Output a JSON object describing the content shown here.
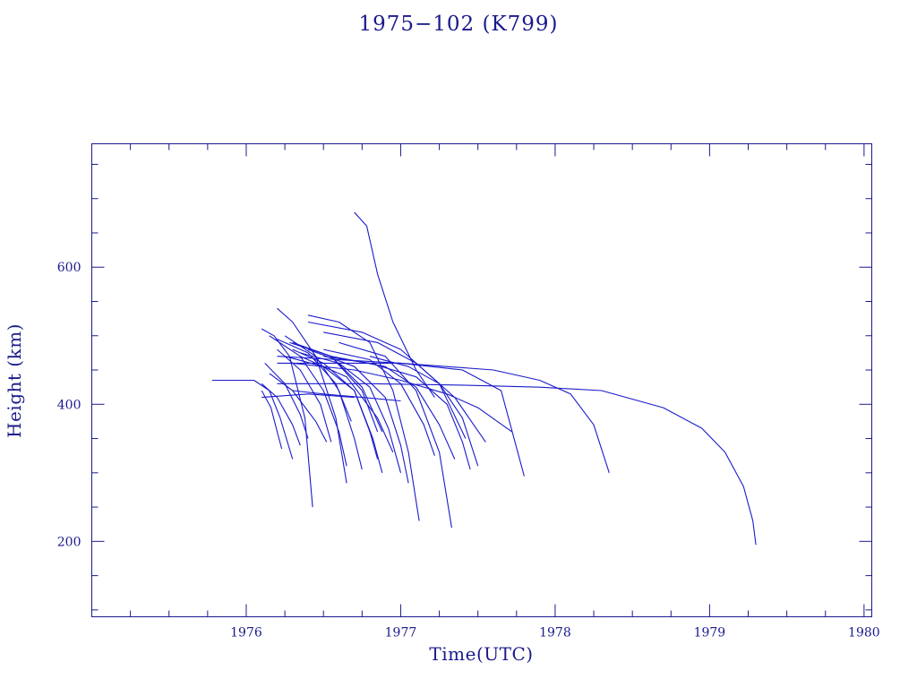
{
  "chart_data": {
    "type": "line",
    "title": "1975−102 (K799)",
    "xlabel": "Time(UTC)",
    "ylabel": "Height (km)",
    "xlim": [
      1975.0,
      1980.05
    ],
    "ylim": [
      90,
      780
    ],
    "x_ticks": [
      1976,
      1977,
      1978,
      1979,
      1980
    ],
    "x_tick_labels": [
      "1976",
      "1977",
      "1978",
      "1979",
      "1980"
    ],
    "y_ticks": [
      200,
      400,
      600
    ],
    "y_tick_labels": [
      "200",
      "400",
      "600"
    ],
    "grid": false,
    "color": "#1a1acc",
    "axis_color": "#1a1a8c",
    "series": [
      {
        "x": [
          1975.78,
          1976.05,
          1976.15,
          1976.22,
          1976.3
        ],
        "y": [
          435,
          435,
          420,
          380,
          320
        ]
      },
      {
        "x": [
          1976.1,
          1976.18,
          1976.28,
          1976.38,
          1976.43
        ],
        "y": [
          510,
          500,
          470,
          380,
          250
        ]
      },
      {
        "x": [
          1976.2,
          1976.3,
          1976.45,
          1976.58,
          1976.65
        ],
        "y": [
          540,
          520,
          470,
          380,
          285
        ]
      },
      {
        "x": [
          1976.7,
          1976.78,
          1976.85,
          1976.95,
          1977.1,
          1977.22
        ],
        "y": [
          680,
          660,
          590,
          520,
          450,
          410
        ]
      },
      {
        "x": [
          1976.4,
          1976.6,
          1976.8,
          1976.95,
          1977.05,
          1977.12
        ],
        "y": [
          530,
          520,
          490,
          420,
          330,
          230
        ]
      },
      {
        "x": [
          1976.6,
          1976.9,
          1977.1,
          1977.25,
          1977.33
        ],
        "y": [
          490,
          470,
          420,
          330,
          220
        ]
      },
      {
        "x": [
          1976.2,
          1976.6,
          1977.0,
          1977.4,
          1977.65,
          1977.8
        ],
        "y": [
          470,
          465,
          460,
          450,
          420,
          295
        ]
      },
      {
        "x": [
          1976.2,
          1977.0,
          1977.6,
          1977.9,
          1978.1,
          1978.25,
          1978.35
        ],
        "y": [
          460,
          460,
          450,
          435,
          415,
          370,
          300
        ]
      },
      {
        "x": [
          1976.2,
          1976.8,
          1977.4,
          1977.9,
          1978.3,
          1978.7,
          1978.95,
          1979.1,
          1979.22,
          1979.28,
          1979.3
        ],
        "y": [
          430,
          430,
          428,
          425,
          420,
          395,
          365,
          330,
          280,
          230,
          195
        ]
      },
      {
        "x": [
          1976.3,
          1976.7,
          1977.0,
          1977.3,
          1977.5,
          1977.72
        ],
        "y": [
          460,
          450,
          435,
          415,
          395,
          360
        ]
      },
      {
        "x": [
          1976.5,
          1976.8,
          1977.1,
          1977.3,
          1977.4,
          1977.45
        ],
        "y": [
          470,
          460,
          440,
          400,
          345,
          305
        ]
      },
      {
        "x": [
          1976.4,
          1976.7,
          1976.9,
          1977.0,
          1977.05
        ],
        "y": [
          480,
          455,
          410,
          340,
          285
        ]
      },
      {
        "x": [
          1976.3,
          1976.5,
          1976.7,
          1976.82,
          1976.88
        ],
        "y": [
          480,
          460,
          420,
          350,
          300
        ]
      },
      {
        "x": [
          1976.25,
          1976.45,
          1976.6,
          1976.7,
          1976.75
        ],
        "y": [
          500,
          470,
          420,
          350,
          305
        ]
      },
      {
        "x": [
          1976.15,
          1976.35,
          1976.5,
          1976.6,
          1976.65
        ],
        "y": [
          500,
          470,
          420,
          360,
          310
        ]
      },
      {
        "x": [
          1976.2,
          1976.35,
          1976.48,
          1976.55
        ],
        "y": [
          480,
          450,
          400,
          345
        ]
      },
      {
        "x": [
          1976.12,
          1976.25,
          1976.35,
          1976.4
        ],
        "y": [
          460,
          430,
          385,
          350
        ]
      },
      {
        "x": [
          1976.25,
          1976.5,
          1976.7,
          1976.8,
          1976.85
        ],
        "y": [
          470,
          455,
          420,
          360,
          320
        ]
      },
      {
        "x": [
          1976.35,
          1976.6,
          1976.8,
          1976.92,
          1977.0
        ],
        "y": [
          475,
          460,
          425,
          365,
          300
        ]
      },
      {
        "x": [
          1976.5,
          1976.8,
          1977.0,
          1977.15,
          1977.22
        ],
        "y": [
          480,
          465,
          430,
          370,
          325
        ]
      },
      {
        "x": [
          1976.55,
          1976.9,
          1977.1,
          1977.25,
          1977.35
        ],
        "y": [
          470,
          455,
          425,
          370,
          320
        ]
      },
      {
        "x": [
          1976.3,
          1976.55,
          1976.75,
          1976.85
        ],
        "y": [
          490,
          470,
          420,
          360
        ]
      },
      {
        "x": [
          1976.35,
          1976.65,
          1976.85,
          1976.95
        ],
        "y": [
          470,
          440,
          380,
          330
        ]
      },
      {
        "x": [
          1976.8,
          1977.05,
          1977.25,
          1977.4,
          1977.5
        ],
        "y": [
          470,
          455,
          430,
          380,
          310
        ]
      },
      {
        "x": [
          1976.4,
          1976.75,
          1977.0,
          1977.25,
          1977.42
        ],
        "y": [
          520,
          505,
          480,
          430,
          350
        ]
      },
      {
        "x": [
          1976.5,
          1976.85,
          1977.1,
          1977.35,
          1977.55
        ],
        "y": [
          505,
          490,
          460,
          410,
          345
        ]
      },
      {
        "x": [
          1976.15,
          1976.3,
          1976.45,
          1976.52
        ],
        "y": [
          445,
          420,
          375,
          345
        ]
      },
      {
        "x": [
          1976.1,
          1976.2,
          1976.3,
          1976.35
        ],
        "y": [
          430,
          410,
          370,
          340
        ]
      },
      {
        "x": [
          1976.1,
          1976.16,
          1976.2,
          1976.23
        ],
        "y": [
          420,
          395,
          360,
          335
        ]
      },
      {
        "x": [
          1976.2,
          1976.4,
          1976.58,
          1976.68
        ],
        "y": [
          495,
          475,
          430,
          375
        ]
      },
      {
        "x": [
          1976.28,
          1976.55,
          1976.75,
          1976.88
        ],
        "y": [
          490,
          470,
          425,
          360
        ]
      },
      {
        "x": [
          1976.3,
          1976.5,
          1976.75,
          1977.0
        ],
        "y": [
          420,
          415,
          410,
          405
        ]
      },
      {
        "x": [
          1976.1,
          1976.4,
          1976.7
        ],
        "y": [
          410,
          415,
          410
        ]
      }
    ]
  }
}
